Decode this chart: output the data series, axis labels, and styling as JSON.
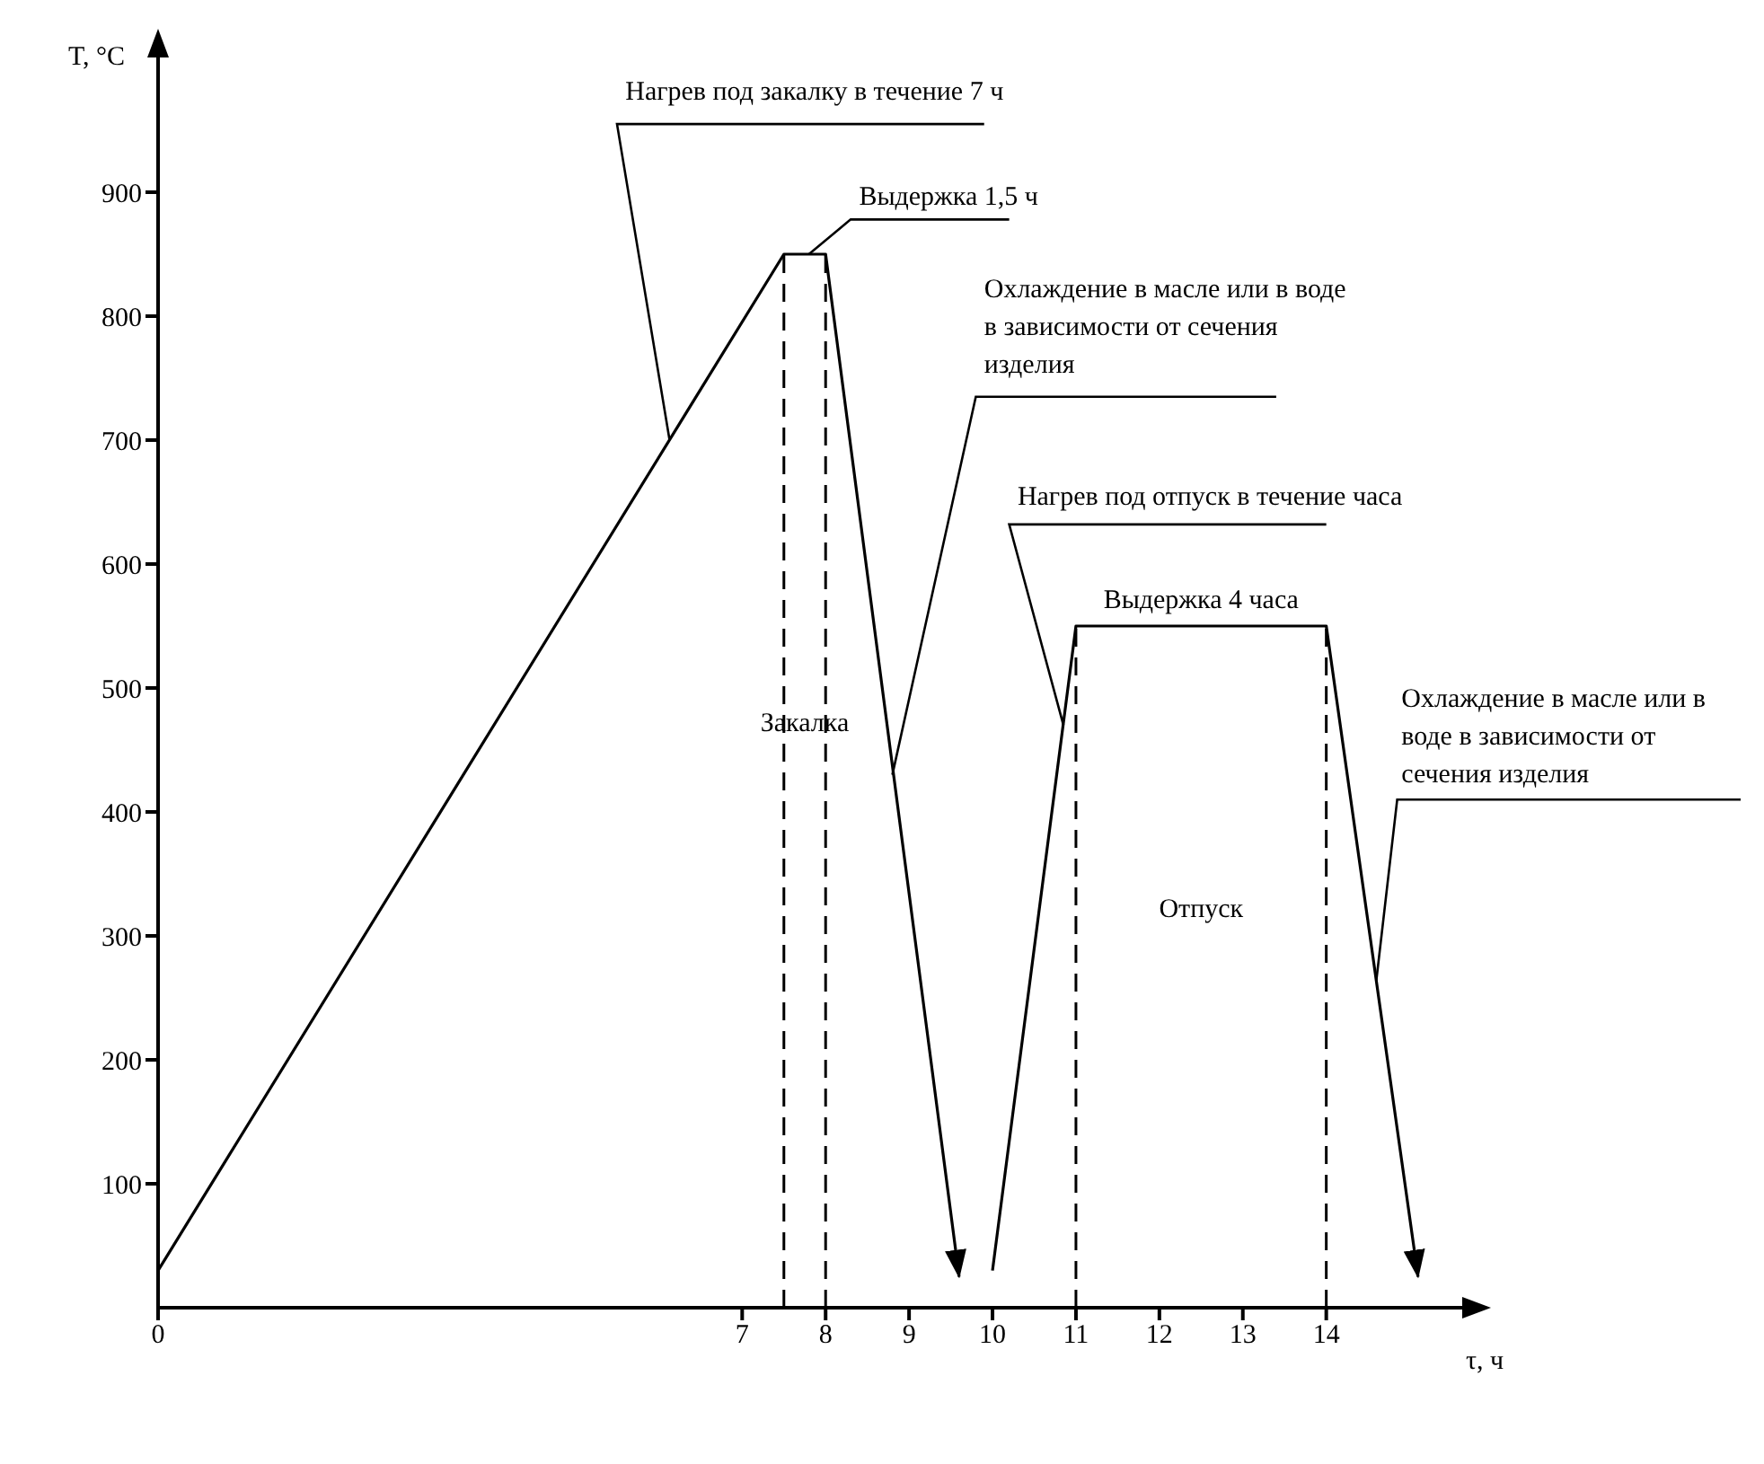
{
  "chart_data": {
    "type": "line",
    "xlabel": "τ, ч",
    "ylabel": "T, °C",
    "xlim": [
      0,
      15.5
    ],
    "xticks": [
      0,
      7,
      8,
      9,
      10,
      11,
      12,
      13,
      14
    ],
    "ylim": [
      0,
      1000
    ],
    "yticks": [
      100,
      200,
      300,
      400,
      500,
      600,
      700,
      800,
      900
    ],
    "marker": "none",
    "line_style": "solid",
    "series": [
      {
        "color": "#000000",
        "x": [
          0,
          7.5,
          8,
          9.6
        ],
        "values": [
          30,
          850,
          850,
          25
        ]
      },
      {
        "color": "#000000",
        "x": [
          10,
          11,
          14,
          15.1
        ],
        "values": [
          30,
          550,
          550,
          25
        ]
      }
    ],
    "ref_lines": [
      {
        "axis": "x",
        "value": 7.5,
        "line_style": "dashed",
        "color": "#000000"
      },
      {
        "axis": "x",
        "value": 8,
        "line_style": "dashed",
        "color": "#000000"
      },
      {
        "axis": "x",
        "value": 11,
        "line_style": "dashed",
        "color": "#000000"
      },
      {
        "axis": "x",
        "value": 14,
        "line_style": "dashed",
        "color": "#000000"
      }
    ],
    "annotations": [
      {
        "text": "Нагрев под закалку в течение 7 ч",
        "x": 6.13,
        "y": 700
      },
      {
        "text": "Выдержка 1,5 ч",
        "x": 7.8,
        "y": 850
      },
      {
        "text": "Охлаждение в масле или в воде в зависимости от сечения изделия",
        "x": 8.8,
        "y": 430
      },
      {
        "text": "Нагрев под отпуск в течение часа",
        "x": 10.85,
        "y": 470
      },
      {
        "text": "Выдержка 4 часа",
        "x": 12.5,
        "y": 550
      },
      {
        "text": "Охлаждение в масле или в воде в зависимости от сечения изделия",
        "x": 14.6,
        "y": 264
      },
      "Закалка",
      "Отпуск"
    ]
  }
}
